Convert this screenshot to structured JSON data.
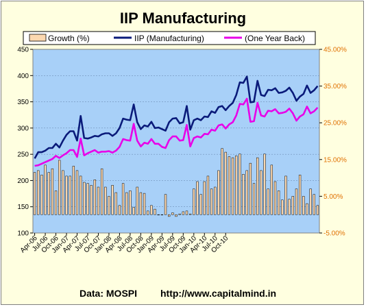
{
  "chart_data": {
    "type": "bar+line",
    "title": "IIP Manufacturing",
    "source_label": "Data: MOSPI",
    "source_url": "http://www.capitalmind.in",
    "colors": {
      "plot_background": "#a8d0f8",
      "bars": "#fcd8b0",
      "iip": "#0a1a7a",
      "one_year_back": "#e800e8",
      "right_axis_text": "#e07000",
      "chart_background": "#ffffe0"
    },
    "legend": {
      "items": [
        {
          "label": "Growth (%)",
          "type": "bar"
        },
        {
          "label": "IIP (Manufacturing)",
          "type": "line"
        },
        {
          "label": "(One Year Back)",
          "type": "line"
        }
      ]
    },
    "y_left": {
      "min": 100,
      "max": 450,
      "ticks": [
        "100",
        "150",
        "200",
        "250",
        "300",
        "350",
        "400",
        "450"
      ]
    },
    "y_right": {
      "min": -5,
      "max": 45,
      "ticks": [
        "-5.00%",
        "5.00%",
        "15.00%",
        "25.00%",
        "35.00%",
        "45.00%"
      ]
    },
    "x_tick_labels": [
      "Apr-06",
      "Jul-06",
      "Oct-06",
      "Jan-07",
      "Apr-07",
      "Jul-07",
      "Oct-07",
      "Jan-08",
      "Apr-08",
      "Jul-08",
      "Oct-08",
      "Jan-09",
      "Apr-09",
      "Jul-09",
      "Oct-09",
      "Jan-10",
      "Apr-10",
      "Jul-10",
      "Oct-10"
    ],
    "x_tick_every": 3,
    "series": [
      {
        "name": "IIP (Manufacturing)",
        "values": [
          242,
          254,
          254,
          257,
          262,
          262,
          270,
          263,
          276,
          287,
          294,
          294,
          276,
          323,
          281,
          280,
          282,
          285,
          284,
          288,
          290,
          290,
          285,
          290,
          300,
          318,
          316,
          315,
          345,
          311,
          298,
          305,
          303,
          312,
          300,
          301,
          298,
          295,
          311,
          318,
          319,
          309,
          311,
          342,
          297,
          315,
          318,
          315,
          322,
          321,
          332,
          329,
          340,
          342,
          334,
          342,
          348,
          363,
          387,
          386,
          398,
          349,
          350,
          390,
          363,
          361,
          373,
          372,
          376,
          367,
          368,
          371,
          377,
          367,
          352,
          360,
          365,
          381,
          367,
          372,
          380
        ]
      },
      {
        "name": "(One Year Back)",
        "values": [
          228,
          229,
          232,
          235,
          238,
          241,
          247,
          243,
          248,
          252,
          258,
          258,
          245,
          280,
          248,
          252,
          255,
          258,
          253,
          255,
          255,
          256,
          253,
          257,
          264,
          279,
          277,
          276,
          308,
          276,
          265,
          272,
          270,
          279,
          270,
          270,
          264,
          262,
          277,
          284,
          284,
          276,
          277,
          306,
          265,
          281,
          284,
          282,
          289,
          288,
          297,
          295,
          305,
          307,
          299,
          307,
          311,
          324,
          346,
          345,
          356,
          312,
          313,
          348,
          324,
          322,
          333,
          332,
          336,
          328,
          329,
          331,
          337,
          328,
          314,
          322,
          326,
          341,
          328,
          332,
          339
        ]
      },
      {
        "name": "Growth (%)",
        "values": [
          11.5,
          12.0,
          10.8,
          13.5,
          11.5,
          12.5,
          6.5,
          14.8,
          12.0,
          10.5,
          10.5,
          13.2,
          12.0,
          10.5,
          8.8,
          8.5,
          8.0,
          9.5,
          7.5,
          12.5,
          7.5,
          5.0,
          8.0,
          6.0,
          2.5,
          8.5,
          6.0,
          6.5,
          2.0,
          7.5,
          6.0,
          5.8,
          1.0,
          2.5,
          1.5,
          0.0,
          0.0,
          5.5,
          -0.5,
          0.5,
          -0.5,
          0.2,
          0.8,
          1.0,
          0.2,
          7.0,
          9.0,
          5.5,
          9.0,
          10.5,
          7.0,
          7.5,
          12.0,
          18.0,
          17.0,
          15.8,
          15.5,
          16.0,
          16.5,
          11.0,
          12.0,
          14.0,
          8.5,
          15.5,
          12.0,
          16.5,
          7.0,
          13.5,
          9.0,
          6.5,
          4.0,
          10.5,
          4.2,
          5.0,
          7.0,
          10.8,
          5.0,
          3.0,
          7.0,
          5.5,
          2.5
        ]
      }
    ]
  }
}
